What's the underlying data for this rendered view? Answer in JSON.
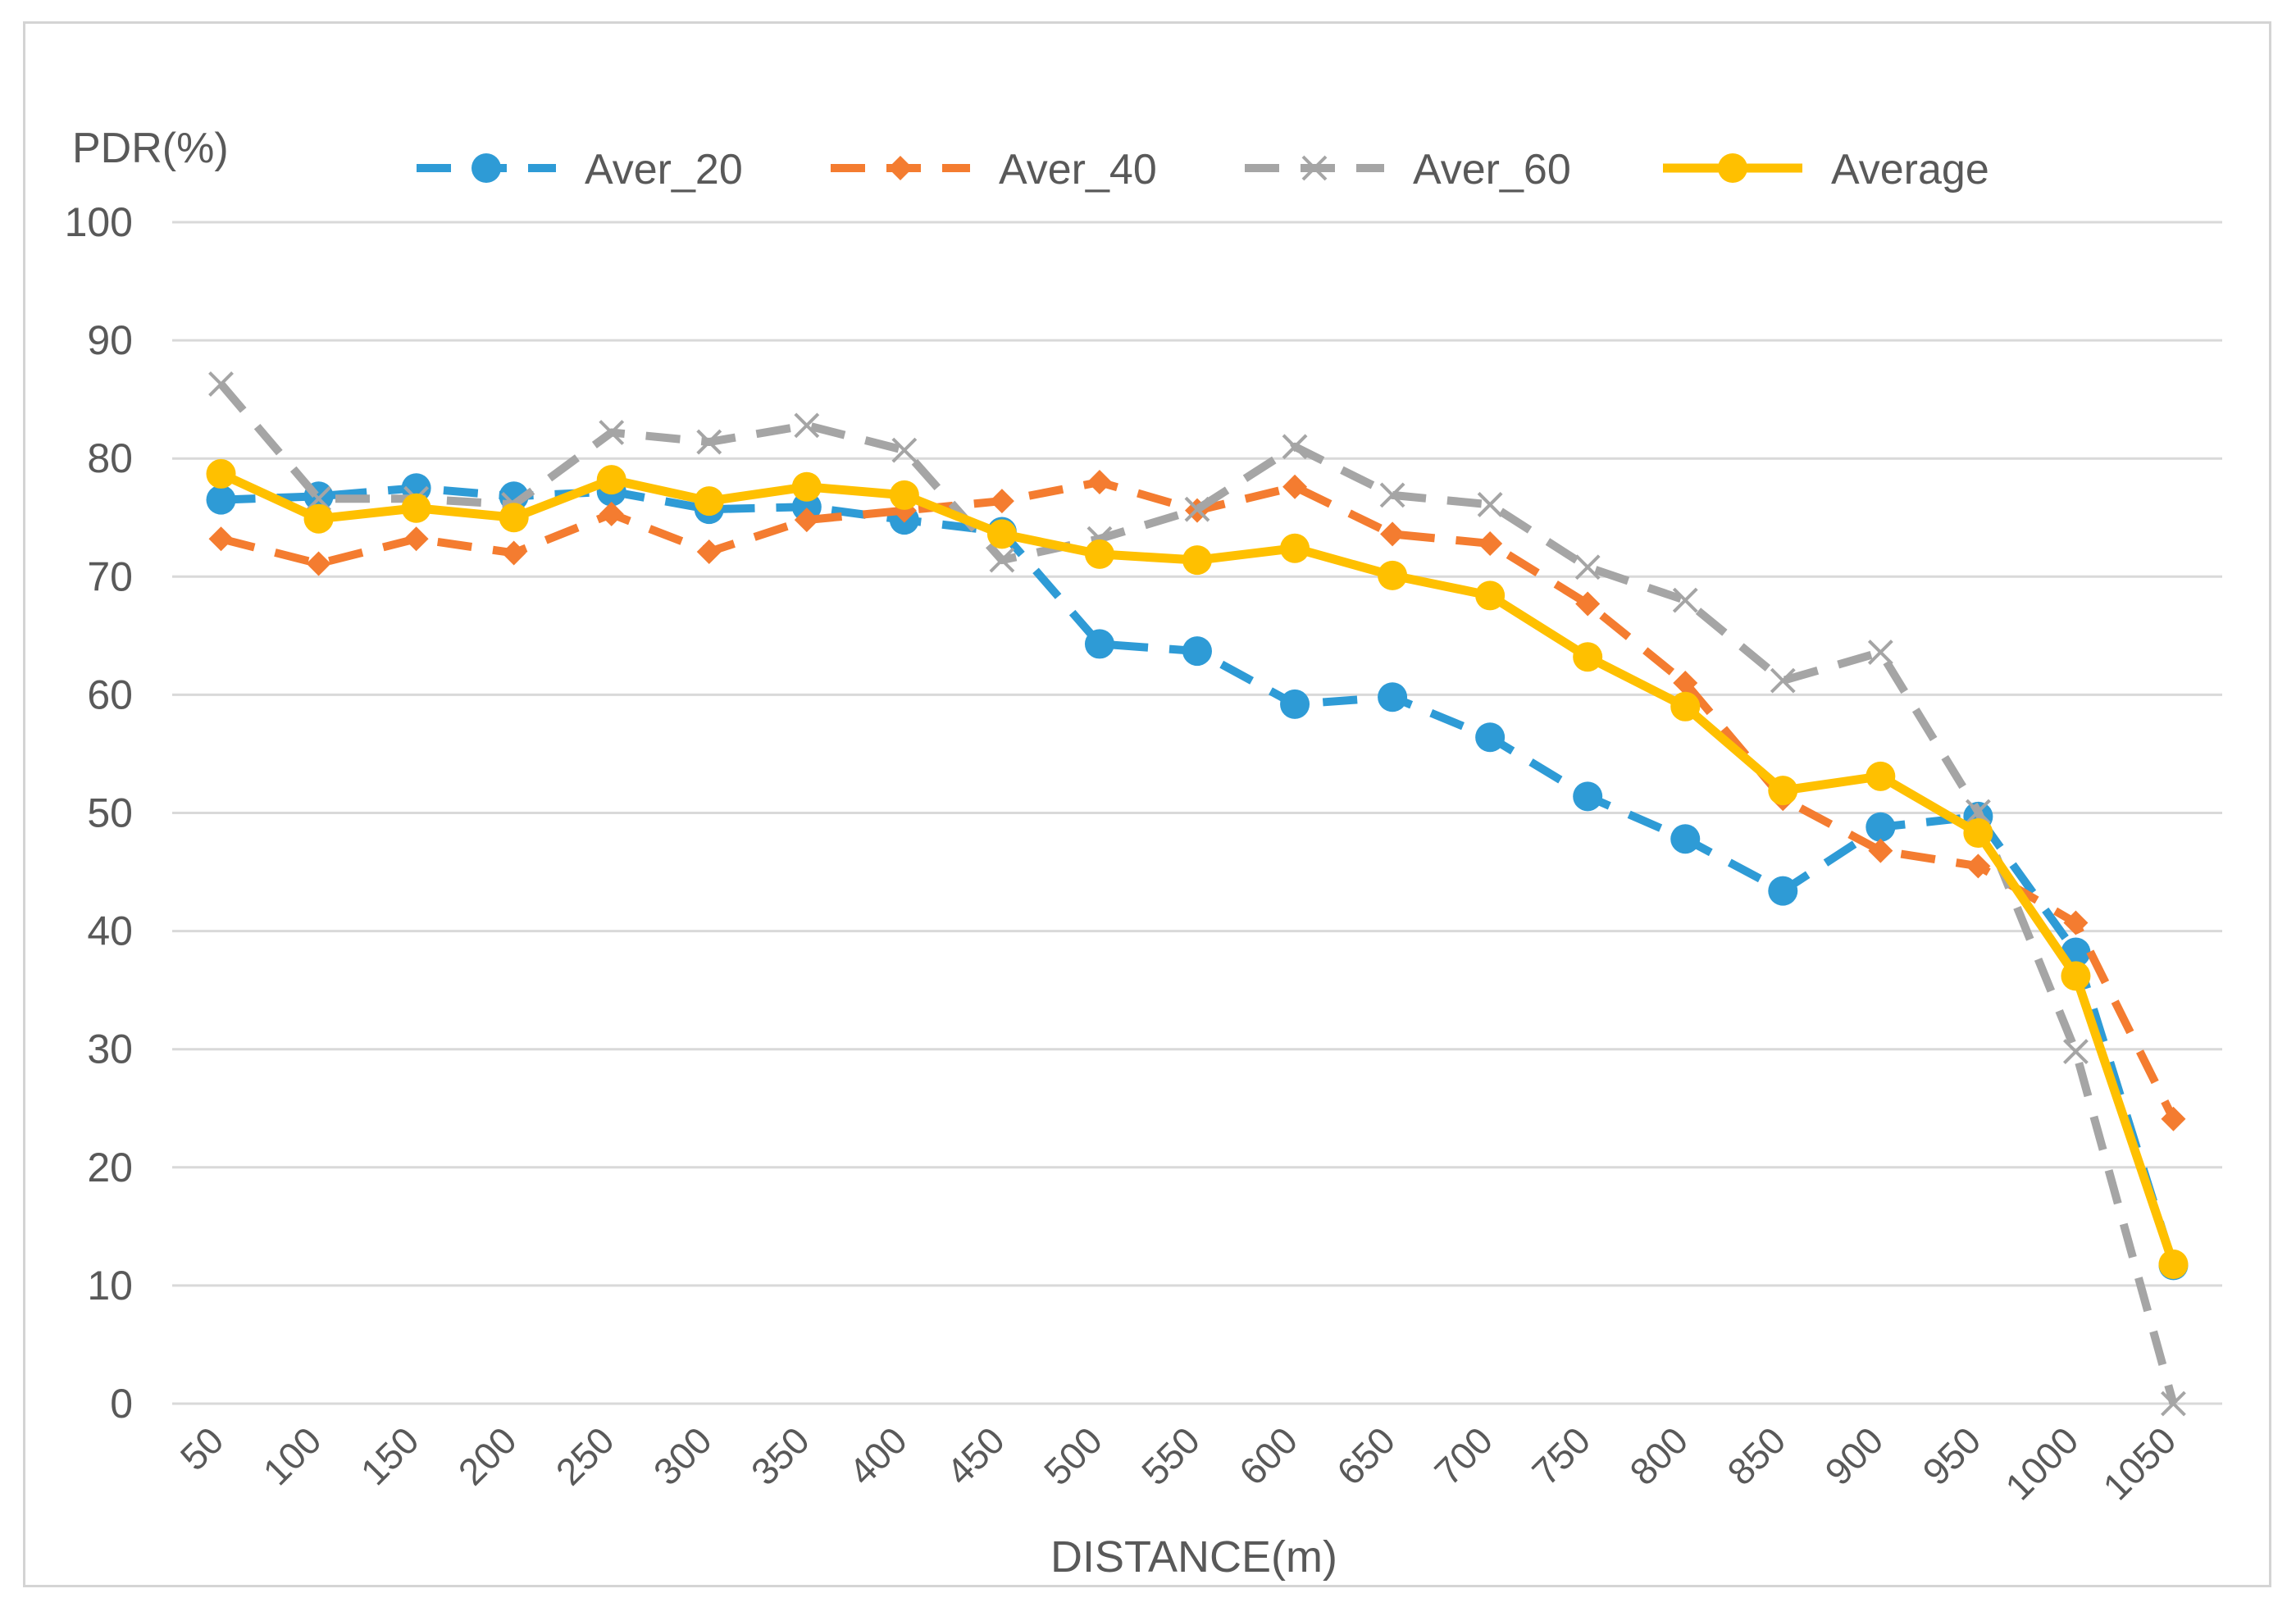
{
  "chart_data": {
    "type": "line",
    "title": "",
    "ylabel": "PDR(%)",
    "xlabel": "DISTANCE(m)",
    "ylim": [
      0,
      100
    ],
    "yticks": [
      "0",
      "10",
      "20",
      "30",
      "40",
      "50",
      "60",
      "70",
      "80",
      "90",
      "100"
    ],
    "categories": [
      "50",
      "100",
      "150",
      "200",
      "250",
      "300",
      "350",
      "400",
      "450",
      "500",
      "550",
      "600",
      "650",
      "700",
      "750",
      "800",
      "850",
      "900",
      "950",
      "1000",
      "1050"
    ],
    "legend_position": "top",
    "grid": true,
    "series": [
      {
        "name": "Aver_20",
        "color": "#2E9BD6",
        "dash": "dashed",
        "marker": "circle",
        "values": [
          76.5,
          76.8,
          77.5,
          76.8,
          77.2,
          75.7,
          75.9,
          74.8,
          73.8,
          64.3,
          63.7,
          59.2,
          59.8,
          56.4,
          51.4,
          47.8,
          43.4,
          48.8,
          49.7,
          38.2,
          11.7
        ]
      },
      {
        "name": "Aver_40",
        "color": "#F47C30",
        "dash": "dashed",
        "marker": "diamond",
        "values": [
          73.2,
          71.1,
          73.2,
          72.0,
          75.3,
          72.1,
          74.8,
          75.6,
          76.4,
          78.0,
          75.6,
          77.6,
          73.6,
          72.8,
          67.7,
          61.0,
          51.2,
          46.8,
          45.5,
          40.7,
          24.1
        ]
      },
      {
        "name": "Aver_60",
        "color": "#A5A5A5",
        "dash": "dashed",
        "marker": "x",
        "values": [
          86.3,
          76.6,
          76.6,
          76.1,
          82.2,
          81.4,
          82.8,
          80.7,
          71.4,
          73.2,
          75.7,
          81.0,
          76.9,
          76.1,
          70.8,
          68.0,
          61.2,
          63.6,
          50.1,
          29.8,
          0.0
        ]
      },
      {
        "name": "Average",
        "color": "#FFC000",
        "dash": "solid",
        "marker": "circle",
        "values": [
          78.7,
          74.9,
          75.8,
          75.0,
          78.2,
          76.4,
          77.6,
          76.9,
          73.6,
          71.9,
          71.4,
          72.4,
          70.1,
          68.4,
          63.2,
          59.0,
          51.9,
          53.1,
          48.3,
          36.2,
          11.8
        ]
      }
    ]
  }
}
